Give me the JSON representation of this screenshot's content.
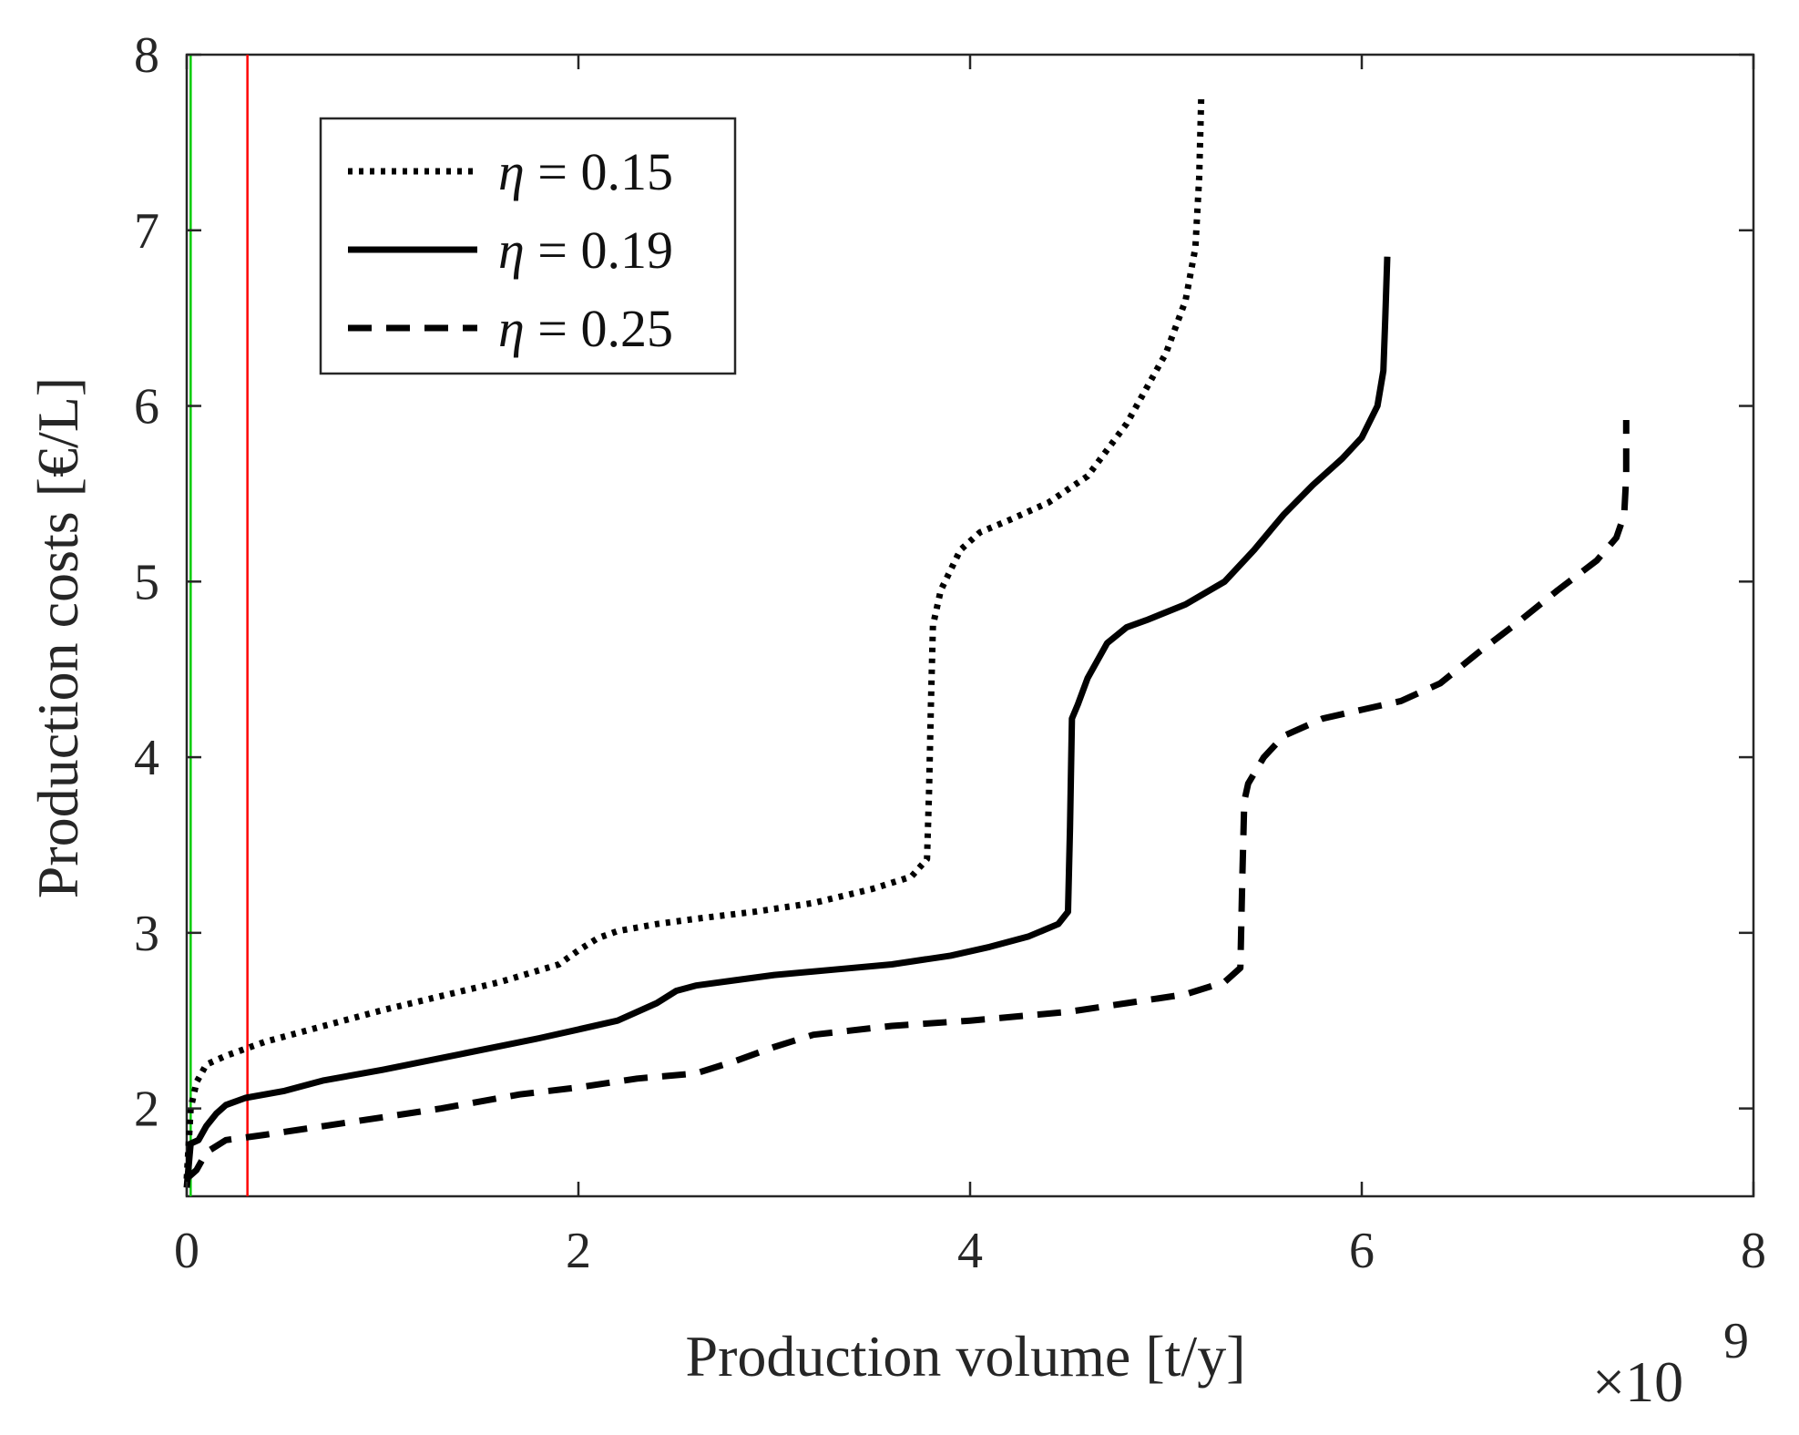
{
  "chart_data": {
    "type": "line",
    "title": "",
    "xlabel": "Production volume [t/y]",
    "ylabel": "Production costs [€/L]",
    "x_multiplier": "×10",
    "x_exponent": "9",
    "xlim": [
      0,
      8
    ],
    "ylim": [
      1.5,
      8
    ],
    "xticks": [
      0,
      2,
      4,
      6,
      8
    ],
    "xtick_labels": [
      "0",
      "2",
      "4",
      "6",
      "8"
    ],
    "yticks": [
      2,
      3,
      4,
      5,
      6,
      7,
      8
    ],
    "ytick_labels": [
      "2",
      "3",
      "4",
      "5",
      "6",
      "7",
      "8"
    ],
    "grid": false,
    "legend_position": "top-left",
    "reference_lines": [
      {
        "name": "green-reference-line",
        "x": 0.02,
        "color": "#00cc00"
      },
      {
        "name": "red-reference-line",
        "x": 0.31,
        "color": "#ff0000"
      }
    ],
    "series": [
      {
        "name": "eta-0.15",
        "legend_symbol": "η",
        "legend_text": " = 0.15",
        "style": "dotted",
        "x": [
          0.0,
          0.02,
          0.05,
          0.1,
          0.2,
          0.4,
          0.7,
          1.0,
          1.3,
          1.6,
          1.9,
          2.0,
          2.1,
          2.2,
          2.4,
          2.6,
          2.9,
          3.2,
          3.5,
          3.7,
          3.78,
          3.79,
          3.8,
          3.81,
          3.85,
          3.95,
          4.05,
          4.2,
          4.4,
          4.6,
          4.8,
          5.0,
          5.1,
          5.15,
          5.17,
          5.18
        ],
        "y": [
          1.6,
          2.0,
          2.15,
          2.25,
          2.3,
          2.38,
          2.47,
          2.56,
          2.64,
          2.72,
          2.82,
          2.9,
          2.97,
          3.01,
          3.05,
          3.08,
          3.12,
          3.17,
          3.25,
          3.32,
          3.42,
          3.8,
          4.3,
          4.75,
          4.95,
          5.18,
          5.28,
          5.35,
          5.45,
          5.6,
          5.9,
          6.3,
          6.6,
          6.9,
          7.3,
          7.75
        ]
      },
      {
        "name": "eta-0.19",
        "legend_symbol": "η",
        "legend_text": " = 0.19",
        "style": "solid",
        "x": [
          0.0,
          0.02,
          0.06,
          0.1,
          0.15,
          0.2,
          0.3,
          0.5,
          0.7,
          1.0,
          1.4,
          1.8,
          2.0,
          2.2,
          2.4,
          2.5,
          2.6,
          2.8,
          3.0,
          3.3,
          3.6,
          3.9,
          4.1,
          4.3,
          4.45,
          4.5,
          4.51,
          4.52,
          4.55,
          4.6,
          4.7,
          4.8,
          4.9,
          5.1,
          5.3,
          5.45,
          5.6,
          5.75,
          5.9,
          6.0,
          6.08,
          6.11,
          6.12,
          6.13
        ],
        "y": [
          1.55,
          1.8,
          1.82,
          1.9,
          1.97,
          2.02,
          2.06,
          2.1,
          2.16,
          2.22,
          2.31,
          2.4,
          2.45,
          2.5,
          2.6,
          2.67,
          2.7,
          2.73,
          2.76,
          2.79,
          2.82,
          2.87,
          2.92,
          2.98,
          3.05,
          3.12,
          3.6,
          4.22,
          4.3,
          4.45,
          4.65,
          4.74,
          4.78,
          4.87,
          5.0,
          5.18,
          5.38,
          5.55,
          5.7,
          5.82,
          6.0,
          6.2,
          6.5,
          6.85
        ]
      },
      {
        "name": "eta-0.25",
        "legend_symbol": "η",
        "legend_text": " = 0.25",
        "style": "dashed",
        "x": [
          0.0,
          0.05,
          0.1,
          0.2,
          0.4,
          0.7,
          1.0,
          1.3,
          1.7,
          2.0,
          2.3,
          2.6,
          2.8,
          3.0,
          3.2,
          3.6,
          4.0,
          4.5,
          4.8,
          5.1,
          5.3,
          5.38,
          5.39,
          5.4,
          5.42,
          5.5,
          5.6,
          5.8,
          6.0,
          6.2,
          6.4,
          6.6,
          6.8,
          7.0,
          7.2,
          7.3,
          7.34,
          7.35,
          7.35
        ],
        "y": [
          1.6,
          1.65,
          1.75,
          1.82,
          1.85,
          1.9,
          1.95,
          2.0,
          2.08,
          2.12,
          2.17,
          2.2,
          2.27,
          2.35,
          2.42,
          2.47,
          2.5,
          2.55,
          2.6,
          2.65,
          2.72,
          2.8,
          3.3,
          3.75,
          3.85,
          4.0,
          4.12,
          4.22,
          4.27,
          4.32,
          4.42,
          4.6,
          4.77,
          4.95,
          5.12,
          5.25,
          5.38,
          5.6,
          5.92
        ]
      }
    ]
  }
}
